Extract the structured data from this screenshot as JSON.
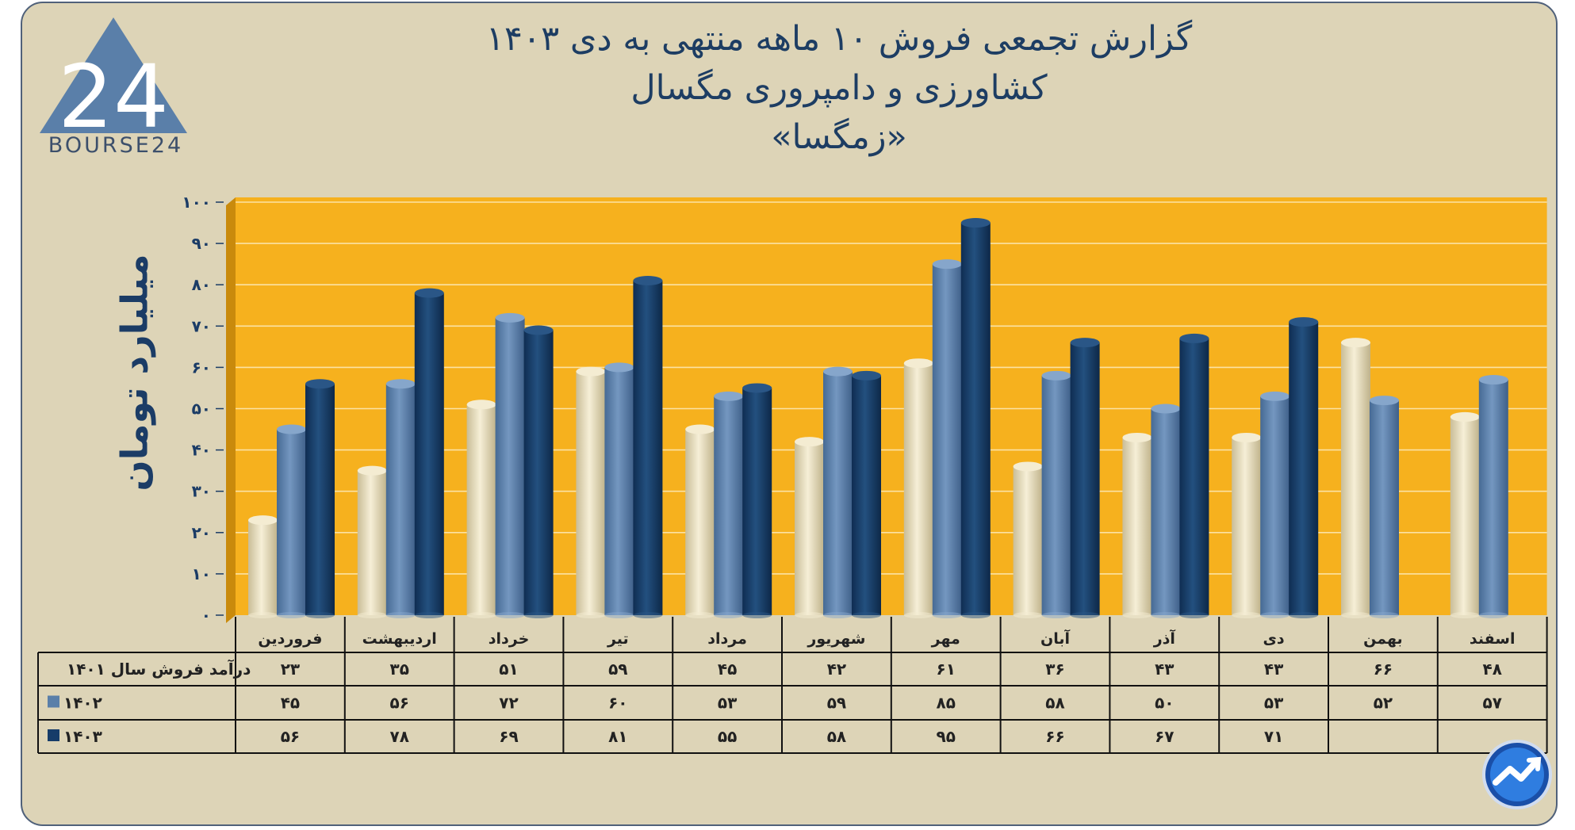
{
  "title": {
    "line1": "گزارش تجمعی فروش ۱۰ ماهه منتهی به دی ۱۴۰۳",
    "line2": "کشاورزی و دامپروری مگسال",
    "line3": "«زمگسا»"
  },
  "logo": {
    "text": "BOURSE24",
    "mark": "24"
  },
  "colors": {
    "background": "#ddd4b7",
    "plot_bg": "#f6b11e",
    "s1401": "#ece3c5",
    "s1402": "#5a7fa9",
    "s1403": "#163c69",
    "title": "#1d3d63"
  },
  "chart_data": {
    "type": "bar",
    "title": "گزارش تجمعی فروش ۱۰ ماهه منتهی به دی ۱۴۰۳",
    "ylabel": "میلیارد تومان",
    "ylim": [
      0,
      100
    ],
    "yticks": [
      0,
      10,
      20,
      30,
      40,
      50,
      60,
      70,
      80,
      90,
      100
    ],
    "ytick_labels": [
      "۰",
      "۱۰",
      "۲۰",
      "۳۰",
      "۴۰",
      "۵۰",
      "۶۰",
      "۷۰",
      "۸۰",
      "۹۰",
      "۱۰۰"
    ],
    "categories": [
      "فروردین",
      "اردیبهشت",
      "خرداد",
      "تیر",
      "مرداد",
      "شهریور",
      "مهر",
      "آبان",
      "آذر",
      "دی",
      "بهمن",
      "اسفند"
    ],
    "series": [
      {
        "name": "درآمد فروش سال ۱۴۰۱",
        "key": "s1401",
        "values": [
          23,
          35,
          51,
          59,
          45,
          42,
          61,
          36,
          43,
          43,
          66,
          48
        ],
        "labels": [
          "۲۳",
          "۳۵",
          "۵۱",
          "۵۹",
          "۴۵",
          "۴۲",
          "۶۱",
          "۳۶",
          "۴۳",
          "۴۳",
          "۶۶",
          "۴۸"
        ]
      },
      {
        "name": "۱۴۰۲",
        "key": "s1402",
        "values": [
          45,
          56,
          72,
          60,
          53,
          59,
          85,
          58,
          50,
          53,
          52,
          57
        ],
        "labels": [
          "۴۵",
          "۵۶",
          "۷۲",
          "۶۰",
          "۵۳",
          "۵۹",
          "۸۵",
          "۵۸",
          "۵۰",
          "۵۳",
          "۵۲",
          "۵۷"
        ]
      },
      {
        "name": "۱۴۰۳",
        "key": "s1403",
        "values": [
          56,
          78,
          69,
          81,
          55,
          58,
          95,
          66,
          67,
          71,
          null,
          null
        ],
        "labels": [
          "۵۶",
          "۷۸",
          "۶۹",
          "۸۱",
          "۵۵",
          "۵۸",
          "۹۵",
          "۶۶",
          "۶۷",
          "۷۱",
          "",
          ""
        ]
      }
    ]
  }
}
